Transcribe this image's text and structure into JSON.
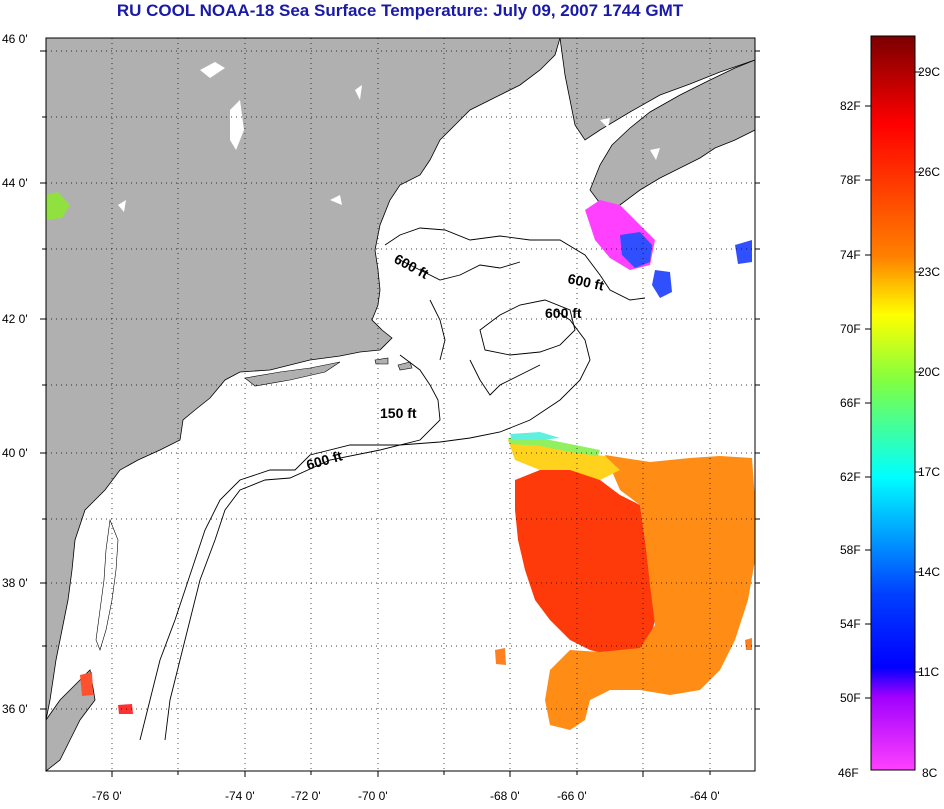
{
  "title": "RU COOL  NOAA-18  Sea Surface Temperature:  July 09, 2007 1744 GMT",
  "map": {
    "lat_labels": [
      "46 0'",
      "44 0'",
      "42 0'",
      "40 0'",
      "38 0'",
      "36 0'"
    ],
    "lon_labels": [
      "-76 0'",
      "-74 0'",
      "-72 0'",
      "-70 0'",
      "-68 0'",
      "-66 0'",
      "-64 0'"
    ],
    "isobaths": [
      "600 ft",
      "600 ft",
      "600 ft",
      "150 ft",
      "600 ft"
    ],
    "colors": {
      "land": "#b0b0b0",
      "ocean": "#ffffff",
      "coast": "#000000"
    }
  },
  "colorbar": {
    "fahrenheit_labels": [
      "82F",
      "78F",
      "74F",
      "70F",
      "66F",
      "62F",
      "58F",
      "54F",
      "50F",
      "46F"
    ],
    "celsius_labels": [
      "29C",
      "26C",
      "23C",
      "20C",
      "17C",
      "14C",
      "11C",
      "8C"
    ],
    "gradient_colors": [
      "#7a0000",
      "#ff0000",
      "#ff8000",
      "#ffff00",
      "#80ff40",
      "#00ffff",
      "#0040ff",
      "#0000ff",
      "#a000ff",
      "#ff40ff"
    ]
  }
}
